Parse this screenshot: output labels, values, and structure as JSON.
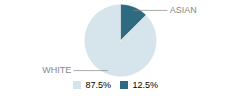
{
  "chart_data": {
    "type": "pie",
    "categories": [
      "WHITE",
      "ASIAN"
    ],
    "values": [
      87.5,
      12.5
    ],
    "value_labels": [
      "87.5%",
      "12.5%"
    ],
    "colors": [
      "#d6e4ec",
      "#2e6a80"
    ],
    "legend": "bottom"
  }
}
